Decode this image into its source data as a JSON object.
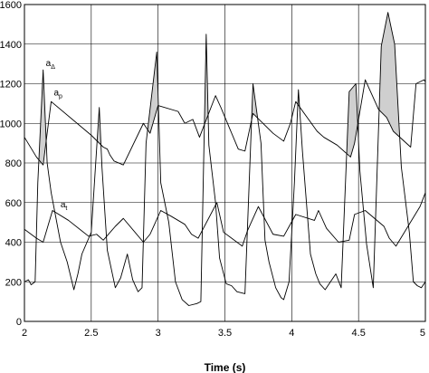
{
  "chart_data": {
    "type": "line",
    "title": "",
    "xlabel": "Time (s)",
    "ylabel": "",
    "xlim": [
      2,
      5
    ],
    "ylim": [
      0,
      1600
    ],
    "grid": true,
    "x_ticks": [
      {
        "value": 2,
        "label": "2"
      },
      {
        "value": 2.5,
        "label": "2.5"
      },
      {
        "value": 3,
        "label": "3"
      },
      {
        "value": 3.5,
        "label": "3.5"
      },
      {
        "value": 4,
        "label": "4"
      },
      {
        "value": 4.5,
        "label": "4.5"
      },
      {
        "value": 5,
        "label": "5"
      }
    ],
    "y_ticks": [
      {
        "value": 0,
        "label": "0"
      },
      {
        "value": 200,
        "label": "200"
      },
      {
        "value": 400,
        "label": "400"
      },
      {
        "value": 600,
        "label": "600"
      },
      {
        "value": 800,
        "label": "800"
      },
      {
        "value": 1000,
        "label": "1000"
      },
      {
        "value": 1200,
        "label": "1200"
      },
      {
        "value": 1400,
        "label": "1400"
      },
      {
        "value": 1600,
        "label": "1600"
      }
    ],
    "annotations": [
      {
        "main": "a",
        "sub": "Δ",
        "x": 2.16,
        "y": 1290
      },
      {
        "main": "a",
        "sub": "p",
        "x": 2.22,
        "y": 1140
      },
      {
        "main": "a",
        "sub": "t",
        "x": 2.27,
        "y": 575
      }
    ],
    "series": [
      {
        "key": "ap",
        "x": [
          2.0,
          2.09,
          2.14,
          2.2,
          2.5,
          2.59,
          2.62,
          2.64,
          2.67,
          2.74,
          2.89,
          2.94,
          3.0,
          3.15,
          3.2,
          3.26,
          3.31,
          3.43,
          3.47,
          3.6,
          3.65,
          3.71,
          3.86,
          3.94,
          3.99,
          4.03,
          4.19,
          4.24,
          4.34,
          4.44,
          4.47,
          4.55,
          4.65,
          4.71,
          4.76,
          4.89,
          4.93,
          4.99,
          5.0
        ],
        "y": [
          930,
          830,
          790,
          1110,
          940,
          880,
          870,
          840,
          810,
          790,
          1000,
          950,
          1090,
          1060,
          1000,
          1020,
          930,
          1140,
          1080,
          870,
          860,
          1050,
          950,
          910,
          1000,
          1110,
          960,
          930,
          890,
          830,
          900,
          1220,
          1070,
          1030,
          960,
          880,
          1200,
          1220,
          1210
        ]
      },
      {
        "key": "at",
        "x": [
          2.0,
          2.09,
          2.14,
          2.21,
          2.33,
          2.48,
          2.54,
          2.59,
          2.68,
          2.74,
          2.89,
          2.94,
          3.02,
          3.1,
          3.2,
          3.25,
          3.3,
          3.44,
          3.49,
          3.63,
          3.67,
          3.75,
          3.86,
          3.94,
          4.03,
          4.17,
          4.2,
          4.26,
          4.35,
          4.43,
          4.47,
          4.55,
          4.69,
          4.73,
          4.78,
          4.96,
          5.0
        ],
        "y": [
          465,
          420,
          400,
          560,
          510,
          430,
          440,
          410,
          480,
          520,
          400,
          440,
          560,
          530,
          490,
          440,
          420,
          600,
          450,
          380,
          460,
          580,
          440,
          430,
          540,
          510,
          560,
          470,
          400,
          410,
          540,
          560,
          480,
          420,
          380,
          580,
          650
        ]
      },
      {
        "key": "aD",
        "x": [
          2.0,
          2.03,
          2.05,
          2.08,
          2.1,
          2.14,
          2.17,
          2.2,
          2.27,
          2.32,
          2.37,
          2.4,
          2.43,
          2.5,
          2.56,
          2.58,
          2.62,
          2.68,
          2.72,
          2.77,
          2.81,
          2.85,
          2.88,
          2.91,
          2.99,
          3.02,
          3.08,
          3.13,
          3.18,
          3.23,
          3.29,
          3.32,
          3.36,
          3.38,
          3.43,
          3.46,
          3.51,
          3.55,
          3.59,
          3.65,
          3.71,
          3.77,
          3.8,
          3.83,
          3.88,
          3.92,
          3.94,
          3.98,
          4.02,
          4.05,
          4.08,
          4.14,
          4.18,
          4.21,
          4.25,
          4.33,
          4.37,
          4.43,
          4.48,
          4.51,
          4.56,
          4.61,
          4.67,
          4.72,
          4.77,
          4.82,
          4.88,
          4.91,
          4.94,
          4.97,
          5.0
        ],
        "y": [
          200,
          210,
          185,
          200,
          700,
          1270,
          800,
          650,
          400,
          300,
          160,
          240,
          340,
          450,
          1080,
          780,
          360,
          170,
          220,
          340,
          210,
          150,
          170,
          900,
          1360,
          700,
          500,
          200,
          110,
          80,
          90,
          100,
          1450,
          890,
          600,
          320,
          190,
          180,
          150,
          140,
          1200,
          900,
          410,
          300,
          170,
          120,
          110,
          200,
          700,
          1170,
          860,
          340,
          240,
          190,
          160,
          240,
          170,
          1160,
          1200,
          760,
          390,
          170,
          1390,
          1560,
          1400,
          780,
          450,
          200,
          180,
          170,
          200
        ]
      }
    ]
  }
}
